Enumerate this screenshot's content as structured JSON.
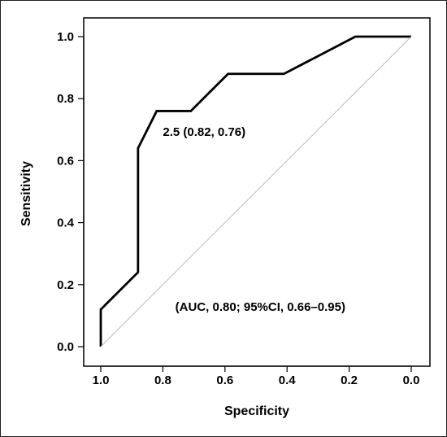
{
  "chart_data": {
    "type": "line",
    "title": "",
    "xlabel": "Specificity",
    "ylabel": "Sensitivity",
    "x_reversed": true,
    "xlim": [
      1.05,
      -0.03
    ],
    "ylim": [
      -0.03,
      1.06
    ],
    "x_ticks": [
      "1.0",
      "0.8",
      "0.6",
      "0.4",
      "0.2",
      "0.0"
    ],
    "y_ticks": [
      "0.0",
      "0.2",
      "0.4",
      "0.6",
      "0.8",
      "1.0"
    ],
    "grid": false,
    "series": [
      {
        "kind": "roc-curve",
        "color": "#000000",
        "x": [
          1.0,
          1.0,
          0.88,
          0.88,
          0.82,
          0.71,
          0.59,
          0.41,
          0.18,
          0.0
        ],
        "y": [
          0.0,
          0.12,
          0.24,
          0.64,
          0.76,
          0.76,
          0.88,
          0.88,
          1.0,
          1.0
        ]
      },
      {
        "kind": "reference-diagonal",
        "color": "#bbbbbb",
        "x": [
          1.0,
          0.0
        ],
        "y": [
          0.0,
          1.0
        ]
      }
    ],
    "annotations": [
      {
        "text": "2.5 (0.82, 0.76)",
        "x": 0.8,
        "y": 0.68
      },
      {
        "text": "(AUC, 0.80; 95%CI, 0.66–0.95)",
        "x": 0.76,
        "y": 0.115
      }
    ]
  }
}
